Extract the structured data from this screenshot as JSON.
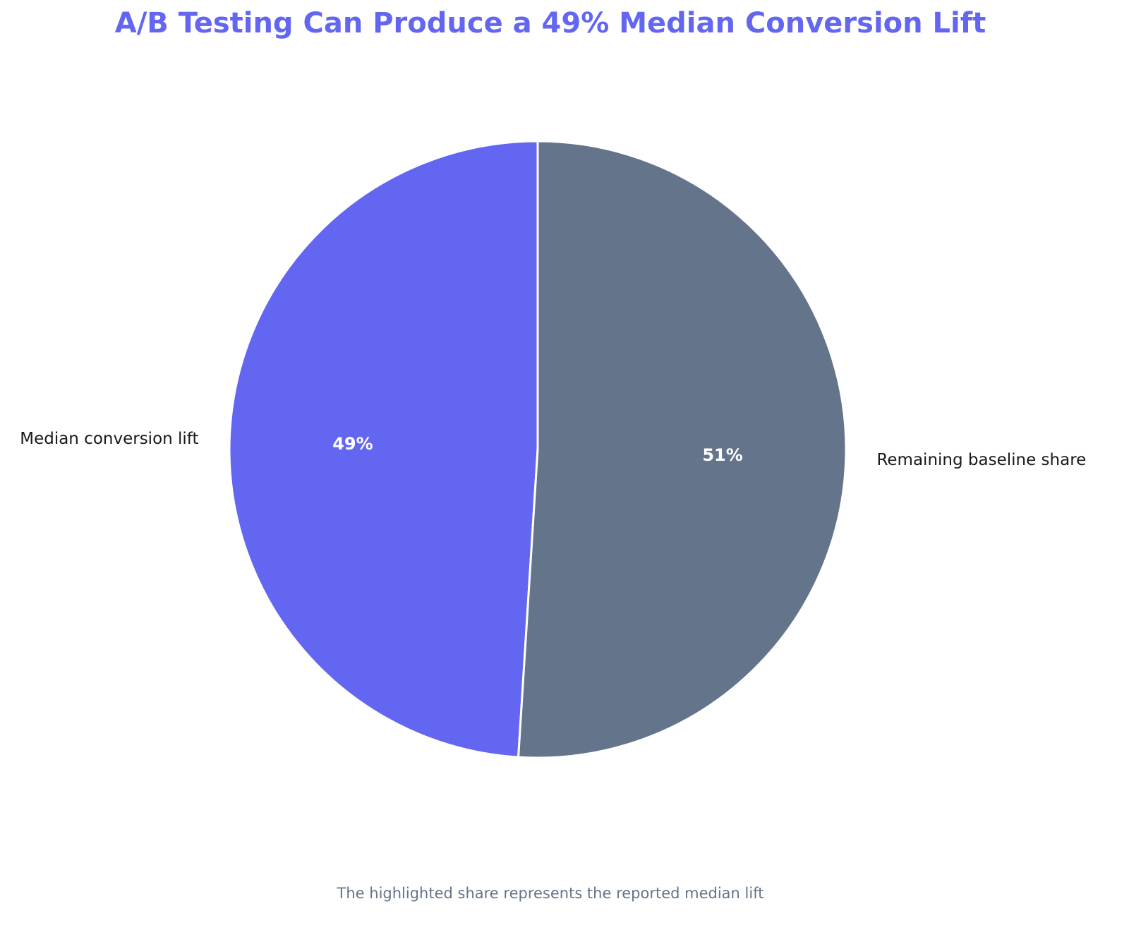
{
  "chart_data": {
    "type": "pie",
    "title": "A/B Testing Can Produce a 49% Median Conversion Lift",
    "footnote": "The highlighted share represents the reported median lift",
    "slices": [
      {
        "label": "Median conversion lift",
        "value": 49,
        "pct_label": "49%",
        "color": "#6366f1"
      },
      {
        "label": "Remaining baseline share",
        "value": 51,
        "pct_label": "51%",
        "color": "#64748b"
      }
    ],
    "start_angle": "top",
    "direction": "counterclockwise"
  },
  "colors": {
    "title": "#6366f1",
    "footnote": "#64748b",
    "label_text": "#1a1a1a",
    "pct_text": "#ffffff",
    "slice_edge": "#ffffff"
  }
}
